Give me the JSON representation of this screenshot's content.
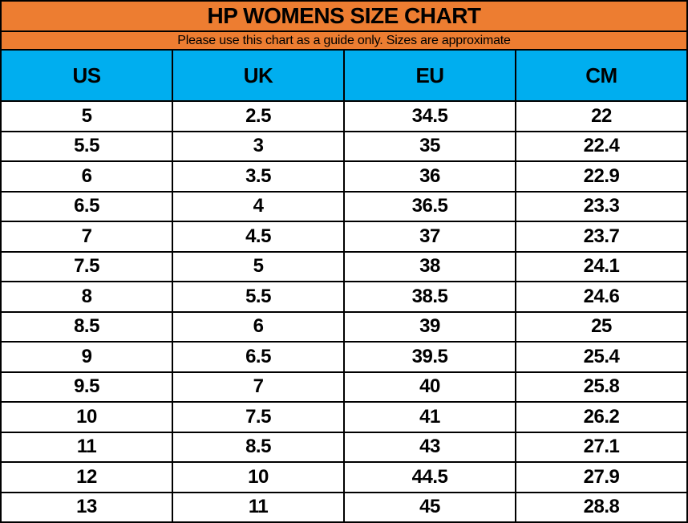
{
  "title": "HP WOMENS SIZE CHART",
  "subtitle": "Please use this chart as a guide only. Sizes are approximate",
  "colors": {
    "title_band": "#ED7D31",
    "header_band": "#00AEEF",
    "border": "#000000",
    "row_background": "#FFFFFF",
    "text": "#000000"
  },
  "chart_data": {
    "type": "table",
    "title": "HP WOMENS SIZE CHART",
    "subtitle": "Please use this chart as a guide only. Sizes are approximate",
    "columns": [
      "US",
      "UK",
      "EU",
      "CM"
    ],
    "rows": [
      [
        "5",
        "2.5",
        "34.5",
        "22"
      ],
      [
        "5.5",
        "3",
        "35",
        "22.4"
      ],
      [
        "6",
        "3.5",
        "36",
        "22.9"
      ],
      [
        "6.5",
        "4",
        "36.5",
        "23.3"
      ],
      [
        "7",
        "4.5",
        "37",
        "23.7"
      ],
      [
        "7.5",
        "5",
        "38",
        "24.1"
      ],
      [
        "8",
        "5.5",
        "38.5",
        "24.6"
      ],
      [
        "8.5",
        "6",
        "39",
        "25"
      ],
      [
        "9",
        "6.5",
        "39.5",
        "25.4"
      ],
      [
        "9.5",
        "7",
        "40",
        "25.8"
      ],
      [
        "10",
        "7.5",
        "41",
        "26.2"
      ],
      [
        "11",
        "8.5",
        "43",
        "27.1"
      ],
      [
        "12",
        "10",
        "44.5",
        "27.9"
      ],
      [
        "13",
        "11",
        "45",
        "28.8"
      ]
    ],
    "layout": {
      "grid": "on",
      "column_widths_pct": [
        25,
        25,
        25,
        25
      ],
      "title_position": "top-merged-row",
      "header_position": "row-3"
    }
  }
}
